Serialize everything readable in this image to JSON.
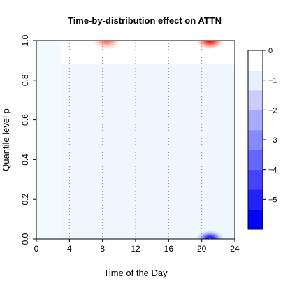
{
  "chart_data": {
    "type": "heatmap",
    "title": "Time-by-distribution effect on ATTN",
    "xlabel": "Time of the Day",
    "ylabel": "Quantile level p",
    "xlim": [
      0,
      24
    ],
    "ylim": [
      0,
      1
    ],
    "x_ticks": [
      "0",
      "4",
      "8",
      "12",
      "16",
      "20",
      "24"
    ],
    "y_ticks": [
      "0.0",
      "0.2",
      "0.4",
      "0.6",
      "0.8",
      "1.0"
    ],
    "vertical_reference_lines_x": [
      4,
      8,
      12,
      16,
      20
    ],
    "colorbar": {
      "range": [
        -6,
        0
      ],
      "ticks": [
        "0",
        "−1",
        "−2",
        "−3",
        "−4",
        "−5"
      ],
      "colors": [
        "#0000ff",
        "#2222ff",
        "#4444ff",
        "#6666ff",
        "#8888ff",
        "#aaaaff",
        "#ccccff",
        "#e6f0ff",
        "#ffffff"
      ]
    },
    "background_value": -0.3,
    "background_color": "#eef7fc",
    "regions": [
      {
        "x": [
          0,
          3
        ],
        "y": [
          0,
          1
        ],
        "color": "#f3fafd"
      },
      {
        "x": [
          3,
          24
        ],
        "y": [
          0.88,
          1.0
        ],
        "color": "#ffffff"
      }
    ],
    "hotspots": [
      {
        "x": 8.5,
        "y": 1.0,
        "sign": "positive",
        "peak_color": "#ff5a4a"
      },
      {
        "x": 21,
        "y": 1.0,
        "sign": "positive",
        "peak_color": "#ee0000"
      },
      {
        "x": 21,
        "y": 0.0,
        "sign": "negative",
        "peak_color": "#0000ff"
      }
    ]
  }
}
